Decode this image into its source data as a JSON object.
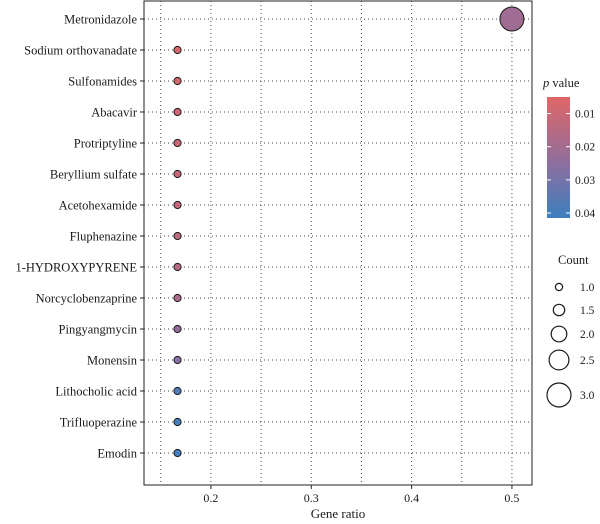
{
  "chart_data": {
    "type": "scatter",
    "title": "",
    "xlabel": "Gene ratio",
    "ylabel": "",
    "xlim": [
      0.1333,
      0.52
    ],
    "x_ticks": [
      0.2,
      0.3,
      0.4,
      0.5
    ],
    "x_tick_labels": [
      "0.2",
      "0.3",
      "0.4",
      "0.5"
    ],
    "grid": "dotted",
    "categories": [
      "Metronidazole",
      "Sodium orthovanadate",
      "Sulfonamides",
      "Abacavir",
      "Protriptyline",
      "Beryllium sulfate",
      "Acetohexamide",
      "Fluphenazine",
      "1-HYDROXYPYRENE",
      "Norcyclobenzaprine",
      "Pingyangmycin",
      "Monensin",
      "Lithocholic acid",
      "Trifluoperazine",
      "Emodin"
    ],
    "gene_ratio": [
      0.5,
      0.1667,
      0.1667,
      0.1667,
      0.1667,
      0.1667,
      0.1667,
      0.1667,
      0.1667,
      0.1667,
      0.1667,
      0.1667,
      0.1667,
      0.1667,
      0.1667
    ],
    "count": [
      3,
      1,
      1,
      1,
      1,
      1,
      1,
      1,
      1,
      1,
      1,
      1,
      1,
      1,
      1
    ],
    "p_value": [
      0.021,
      0.0075,
      0.009,
      0.01,
      0.011,
      0.0115,
      0.012,
      0.014,
      0.015,
      0.018,
      0.024,
      0.027,
      0.037,
      0.039,
      0.04
    ],
    "color_legend": {
      "title_italic": "p",
      "title_rest": " value",
      "ticks": [
        0.01,
        0.02,
        0.03,
        0.04
      ],
      "tick_labels": [
        "0.01",
        "0.02",
        "0.03",
        "0.04"
      ],
      "range": [
        0.005,
        0.0415
      ],
      "color_low": "#e06666",
      "color_high": "#3d7fbf",
      "placement": "right"
    },
    "size_legend": {
      "title": "Count",
      "values": [
        1.0,
        1.5,
        2.0,
        2.5,
        3.0
      ],
      "labels": [
        "1.0",
        "1.5",
        "2.0",
        "2.5",
        "3.0"
      ],
      "placement": "right"
    }
  }
}
